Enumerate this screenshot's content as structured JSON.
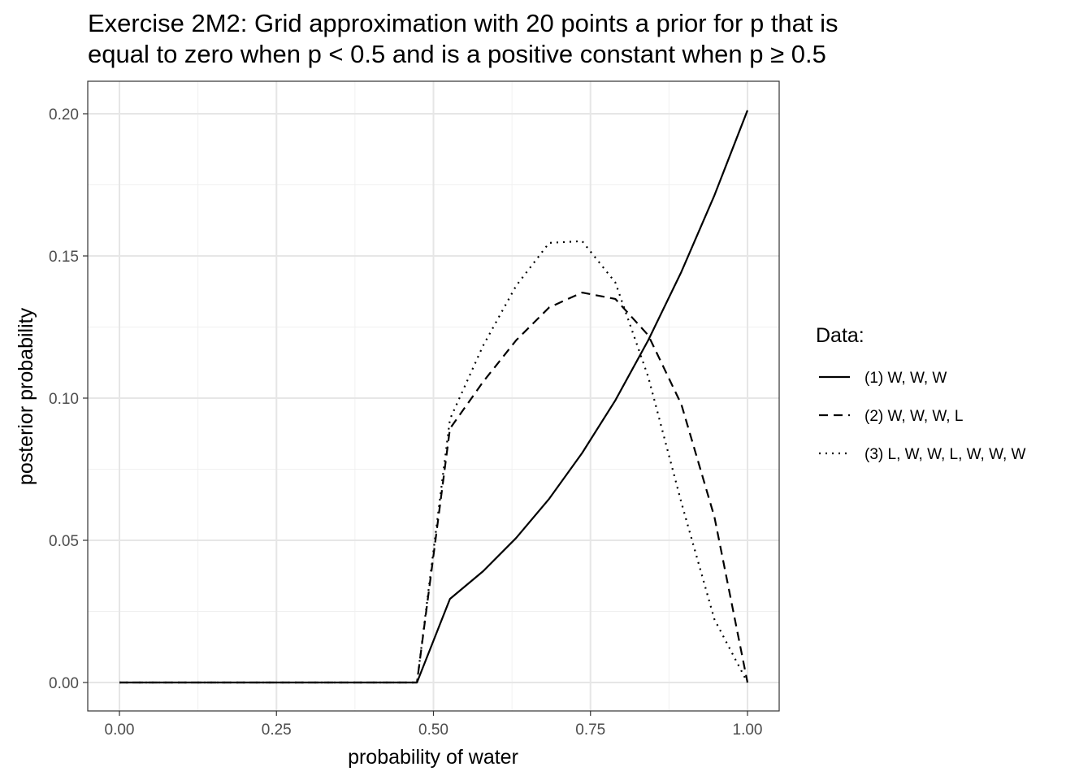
{
  "chart_data": {
    "type": "line",
    "title_lines": [
      "Exercise 2M2: Grid approximation with 20 points a prior for p that is",
      "equal to zero when p < 0.5 and is a positive constant when p ≥ 0.5"
    ],
    "xlabel": "probability of water",
    "ylabel": "posterior probability",
    "xlim": [
      0,
      1
    ],
    "ylim": [
      0,
      0.2
    ],
    "x_ticks": [
      0,
      0.25,
      0.5,
      0.75,
      1
    ],
    "x_tick_labels": [
      "0.00",
      "0.25",
      "0.50",
      "0.75",
      "1.00"
    ],
    "y_ticks": [
      0,
      0.05,
      0.1,
      0.15,
      0.2
    ],
    "y_tick_labels": [
      "0.00",
      "0.05",
      "0.10",
      "0.15",
      "0.20"
    ],
    "grid": true,
    "legend_title": "Data:",
    "legend_position": "right",
    "x": [
      0,
      0.0526,
      0.1053,
      0.1579,
      0.2105,
      0.2632,
      0.3158,
      0.3684,
      0.4211,
      0.4737,
      0.5263,
      0.5789,
      0.6316,
      0.6842,
      0.7368,
      0.7895,
      0.8421,
      0.8947,
      0.9474,
      1
    ],
    "series": [
      {
        "name": "(1) W, W, W",
        "line_style": "solid",
        "values": [
          0,
          0,
          0,
          0,
          0,
          0,
          0,
          0,
          0,
          0,
          0.0294,
          0.0391,
          0.0508,
          0.0646,
          0.0807,
          0.0992,
          0.1204,
          0.1444,
          0.1713,
          0.2012
        ]
      },
      {
        "name": "(2) W, W, W, L",
        "line_style": "dashed",
        "values": [
          0,
          0,
          0,
          0,
          0,
          0,
          0,
          0,
          0,
          0,
          0.0893,
          0.1057,
          0.1203,
          0.1319,
          0.1371,
          0.1349,
          0.1221,
          0.0978,
          0.0582,
          0
        ]
      },
      {
        "name": "(3) L, W, W, L, W, W, W",
        "line_style": "dotted",
        "values": [
          0,
          0,
          0,
          0,
          0,
          0,
          0,
          0,
          0,
          0,
          0.0926,
          0.1184,
          0.1395,
          0.1546,
          0.1552,
          0.1407,
          0.1074,
          0.0633,
          0.0222,
          0
        ]
      }
    ]
  }
}
